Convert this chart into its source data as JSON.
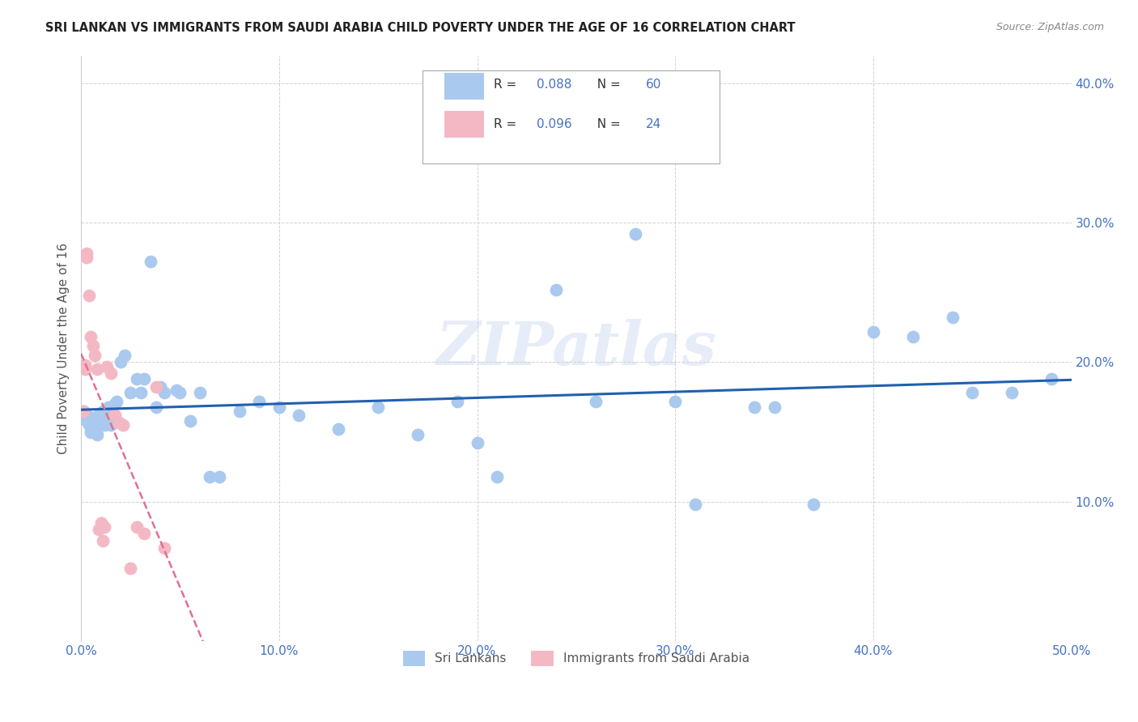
{
  "title": "SRI LANKAN VS IMMIGRANTS FROM SAUDI ARABIA CHILD POVERTY UNDER THE AGE OF 16 CORRELATION CHART",
  "source": "Source: ZipAtlas.com",
  "ylabel": "Child Poverty Under the Age of 16",
  "xlim": [
    0.0,
    0.5
  ],
  "ylim": [
    0.0,
    0.42
  ],
  "xticks": [
    0.0,
    0.1,
    0.2,
    0.3,
    0.4,
    0.5
  ],
  "yticks": [
    0.1,
    0.2,
    0.3,
    0.4
  ],
  "xticklabels": [
    "0.0%",
    "10.0%",
    "20.0%",
    "30.0%",
    "40.0%",
    "50.0%"
  ],
  "yticklabels": [
    "10.0%",
    "20.0%",
    "30.0%",
    "40.0%"
  ],
  "legend1_r": "0.088",
  "legend1_n": "60",
  "legend2_r": "0.096",
  "legend2_n": "24",
  "legend_bottom1": "Sri Lankans",
  "legend_bottom2": "Immigrants from Saudi Arabia",
  "blue_color": "#aac9ee",
  "pink_color": "#f4b8c4",
  "blue_line_color": "#2060b0",
  "pink_line_color": "#e07090",
  "watermark": "ZIPatlas",
  "background_color": "#ffffff",
  "grid_color": "#cccccc",
  "sri_lankan_x": [
    0.001,
    0.002,
    0.003,
    0.003,
    0.004,
    0.004,
    0.005,
    0.006,
    0.007,
    0.008,
    0.009,
    0.01,
    0.011,
    0.012,
    0.013,
    0.014,
    0.015,
    0.016,
    0.017,
    0.018,
    0.02,
    0.022,
    0.025,
    0.028,
    0.03,
    0.032,
    0.035,
    0.038,
    0.04,
    0.042,
    0.048,
    0.05,
    0.055,
    0.06,
    0.065,
    0.07,
    0.08,
    0.09,
    0.1,
    0.11,
    0.13,
    0.15,
    0.17,
    0.19,
    0.2,
    0.21,
    0.24,
    0.26,
    0.28,
    0.3,
    0.31,
    0.34,
    0.35,
    0.37,
    0.4,
    0.42,
    0.44,
    0.45,
    0.47,
    0.49
  ],
  "sri_lankan_y": [
    0.165,
    0.16,
    0.158,
    0.162,
    0.155,
    0.16,
    0.15,
    0.16,
    0.155,
    0.148,
    0.162,
    0.158,
    0.165,
    0.155,
    0.16,
    0.168,
    0.155,
    0.162,
    0.17,
    0.172,
    0.2,
    0.205,
    0.178,
    0.188,
    0.178,
    0.188,
    0.272,
    0.168,
    0.182,
    0.178,
    0.18,
    0.178,
    0.158,
    0.178,
    0.118,
    0.118,
    0.165,
    0.172,
    0.168,
    0.162,
    0.152,
    0.168,
    0.148,
    0.172,
    0.142,
    0.118,
    0.252,
    0.172,
    0.292,
    0.172,
    0.098,
    0.168,
    0.168,
    0.098,
    0.222,
    0.218,
    0.232,
    0.178,
    0.178,
    0.188
  ],
  "saudi_x": [
    0.001,
    0.002,
    0.002,
    0.003,
    0.003,
    0.004,
    0.005,
    0.006,
    0.007,
    0.008,
    0.009,
    0.01,
    0.011,
    0.012,
    0.013,
    0.015,
    0.017,
    0.019,
    0.021,
    0.025,
    0.028,
    0.032,
    0.038,
    0.042
  ],
  "saudi_y": [
    0.165,
    0.198,
    0.195,
    0.278,
    0.275,
    0.248,
    0.218,
    0.212,
    0.205,
    0.195,
    0.08,
    0.085,
    0.072,
    0.082,
    0.197,
    0.192,
    0.162,
    0.157,
    0.155,
    0.052,
    0.082,
    0.077,
    0.182,
    0.067
  ]
}
